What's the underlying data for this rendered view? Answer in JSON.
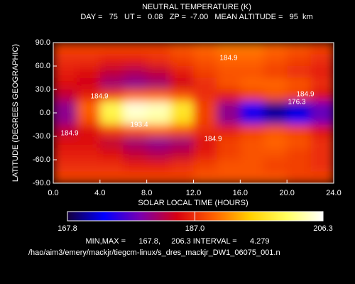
{
  "chart_data": {
    "type": "contour",
    "title": "NEUTRAL TEMPERATURE (K)",
    "subtitle": "DAY =   75   UT =   0.08   ZP =  -7.00   MEAN ALTITUDE =   95  km",
    "xlabel": "SOLAR LOCAL TIME (HOURS)",
    "ylabel": "LATITUDE (DEGREES GEOGRAPHIC)",
    "x": [
      1,
      3,
      5,
      7,
      9,
      11,
      13,
      15,
      17,
      19,
      21,
      23
    ],
    "y": [
      82.5,
      67.5,
      52.5,
      37.5,
      22.5,
      7.5,
      -7.5,
      -22.5,
      -37.5,
      -52.5,
      -67.5,
      -82.5
    ],
    "z": [
      [
        188,
        188,
        188,
        188,
        188,
        189,
        190,
        191,
        191,
        190,
        189,
        188
      ],
      [
        187,
        187,
        186,
        186,
        187,
        188,
        189,
        190,
        190,
        189,
        188,
        187
      ],
      [
        186,
        185,
        183,
        182,
        183,
        186,
        188,
        189,
        189,
        188,
        187,
        186
      ],
      [
        185,
        184,
        181,
        180,
        181,
        184,
        187,
        189,
        190,
        190,
        189,
        187
      ],
      [
        183,
        186,
        188,
        190,
        190,
        189,
        187,
        186,
        188,
        189,
        188,
        185
      ],
      [
        180,
        190,
        200,
        205,
        204,
        198,
        188,
        180,
        174,
        170,
        172,
        178
      ],
      [
        180,
        189,
        199,
        204,
        203,
        197,
        188,
        180,
        175,
        171,
        173,
        178
      ],
      [
        183,
        185,
        188,
        189,
        190,
        189,
        187,
        186,
        188,
        189,
        188,
        185
      ],
      [
        185,
        185,
        183,
        181,
        180,
        181,
        185,
        188,
        189,
        190,
        189,
        187
      ],
      [
        186,
        186,
        185,
        183,
        182,
        183,
        186,
        188,
        189,
        189,
        188,
        187
      ],
      [
        187,
        187,
        187,
        186,
        186,
        187,
        188,
        189,
        189,
        188,
        188,
        187
      ],
      [
        188,
        188,
        188,
        188,
        188,
        188,
        189,
        189,
        189,
        189,
        188,
        188
      ]
    ],
    "xlim": [
      0,
      24
    ],
    "ylim": [
      -90,
      90
    ],
    "xticks": [
      {
        "value": 0,
        "label": "0.0"
      },
      {
        "value": 4,
        "label": "4.0"
      },
      {
        "value": 8,
        "label": "8.0"
      },
      {
        "value": 12,
        "label": "12.0"
      },
      {
        "value": 16,
        "label": "16.0"
      },
      {
        "value": 20,
        "label": "20.0"
      },
      {
        "value": 24,
        "label": "24.0"
      }
    ],
    "yticks": [
      {
        "value": -90,
        "label": "-90.0"
      },
      {
        "value": -60,
        "label": "-60.0"
      },
      {
        "value": -30,
        "label": "-30.0"
      },
      {
        "value": 0,
        "label": "0.0"
      },
      {
        "value": 30,
        "label": "30.0"
      },
      {
        "value": 60,
        "label": "60.0"
      },
      {
        "value": 90,
        "label": "90.0"
      }
    ],
    "zlim": [
      167.8,
      206.3
    ],
    "zticks": [
      167.8,
      {
        "value": 187,
        "label": "187.0"
      },
      206.3
    ],
    "colormap": [
      "#14003c",
      "#0000ff",
      "#7a00b0",
      "#d80010",
      "#ff6000",
      "#ffd000",
      "#ffff60",
      "#ffffff"
    ],
    "annotations": [
      "184.9",
      "184.9",
      "184.9",
      "184.9",
      "184.9",
      "193.4",
      "176.3"
    ],
    "stats": "MIN,MAX =      167.8,     206.3 INTERVAL =      4.279",
    "file": "/hao/aim3/emery/mackjr/tiegcm-linux/s_dres_mackjr_DW1_06075_001.n"
  }
}
